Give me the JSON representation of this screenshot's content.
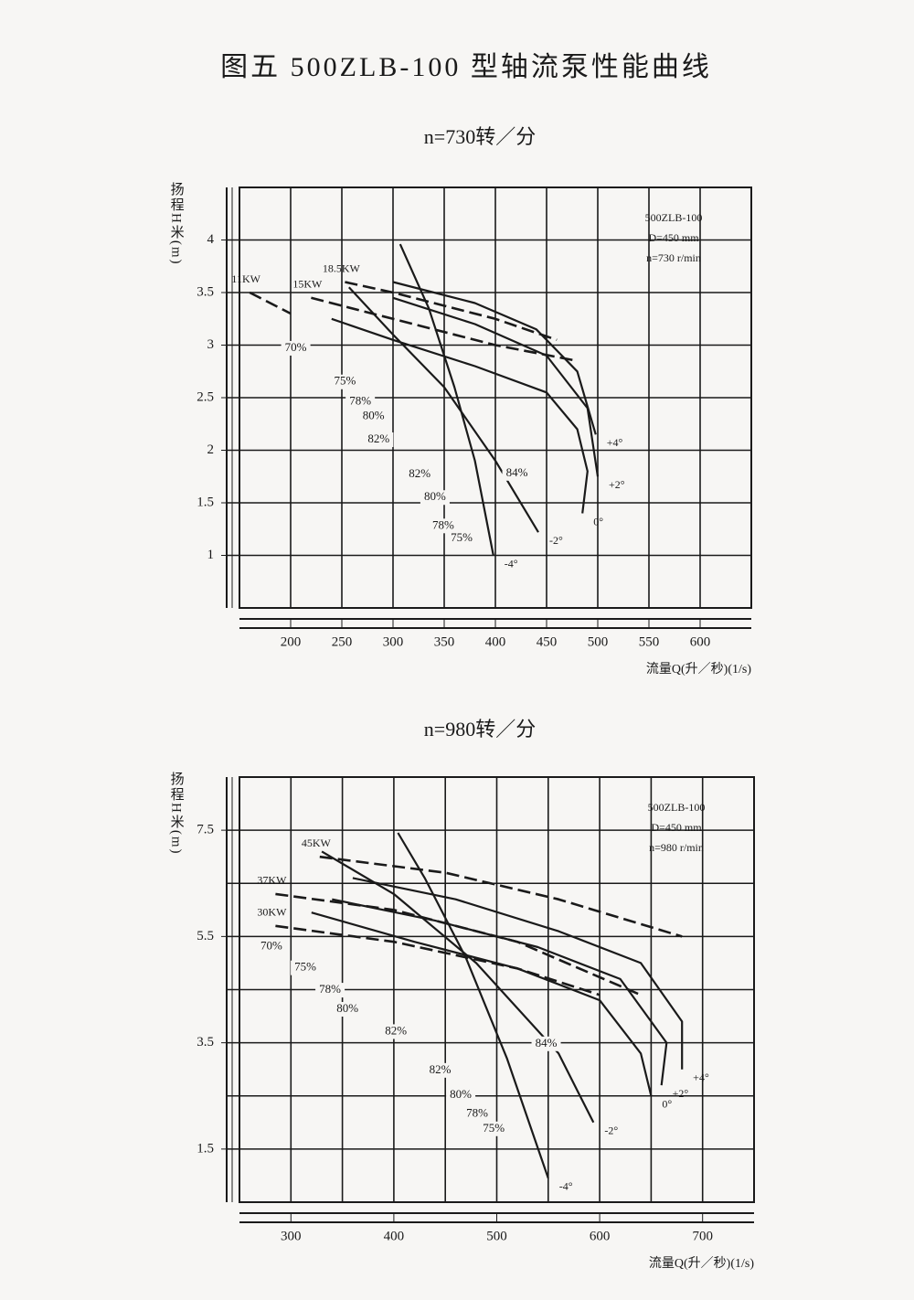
{
  "title": "图五 500ZLB-100 型轴流泵性能曲线",
  "chart_data": [
    {
      "type": "line",
      "title": "n=730转／分",
      "xlabel": "流量Q(升／秒)(1/s)",
      "ylabel": "扬程H米(m)",
      "info": [
        "500ZLB-100",
        "D=450 mm",
        "n=730 r/min"
      ],
      "xlim": [
        150,
        650
      ],
      "ylim": [
        0.5,
        4.5
      ],
      "xticks": [
        200,
        250,
        300,
        350,
        400,
        450,
        500,
        550,
        600
      ],
      "yticks": [
        1,
        1.5,
        2,
        2.5,
        3,
        3.5,
        4
      ],
      "xgrid": [
        200,
        250,
        300,
        350,
        400,
        450,
        500,
        550,
        600
      ],
      "ygrid": [
        1,
        1.5,
        2,
        2.5,
        3,
        3.5,
        4
      ],
      "color": "#1a1a1a",
      "series": [
        {
          "name": "-4°",
          "x": [
            307,
            335,
            360,
            380,
            398
          ],
          "values": [
            3.96,
            3.35,
            2.6,
            1.9,
            1.0
          ]
        },
        {
          "name": "-2°",
          "x": [
            257,
            300,
            350,
            400,
            442
          ],
          "values": [
            3.55,
            3.1,
            2.6,
            1.9,
            1.22
          ]
        },
        {
          "name": "0°",
          "x": [
            240,
            300,
            380,
            450,
            480,
            490,
            485
          ],
          "values": [
            3.25,
            3.05,
            2.8,
            2.55,
            2.2,
            1.8,
            1.4
          ]
        },
        {
          "name": "+2°",
          "x": [
            300,
            380,
            450,
            490,
            500
          ],
          "values": [
            3.45,
            3.2,
            2.9,
            2.4,
            1.75
          ]
        },
        {
          "name": "+4°",
          "x": [
            300,
            380,
            440,
            480,
            498
          ],
          "values": [
            3.6,
            3.4,
            3.15,
            2.75,
            2.15
          ]
        },
        {
          "name": "11KW",
          "dashed": true,
          "x": [
            160,
            200
          ],
          "values": [
            3.5,
            3.3
          ]
        },
        {
          "name": "15KW",
          "dashed": true,
          "x": [
            220,
            300,
            400,
            480
          ],
          "values": [
            3.45,
            3.25,
            3.0,
            2.85
          ]
        },
        {
          "name": "18.5KW",
          "dashed": true,
          "x": [
            253,
            300,
            400,
            460
          ],
          "values": [
            3.6,
            3.5,
            3.25,
            3.05
          ]
        }
      ],
      "annotations": [
        {
          "text": "70%",
          "x": 205,
          "y": 2.97
        },
        {
          "text": "75%",
          "x": 253,
          "y": 2.65
        },
        {
          "text": "78%",
          "x": 268,
          "y": 2.46
        },
        {
          "text": "80%",
          "x": 281,
          "y": 2.32
        },
        {
          "text": "82%",
          "x": 286,
          "y": 2.1
        },
        {
          "text": "82%",
          "x": 326,
          "y": 1.77
        },
        {
          "text": "84%",
          "x": 421,
          "y": 1.78
        },
        {
          "text": "80%",
          "x": 341,
          "y": 1.55
        },
        {
          "text": "78%",
          "x": 349,
          "y": 1.28
        },
        {
          "text": "75%",
          "x": 367,
          "y": 1.16
        }
      ]
    },
    {
      "type": "line",
      "title": "n=980转／分",
      "xlabel": "流量Q(升／秒)(1/s)",
      "ylabel": "扬程H米(m)",
      "info": [
        "500ZLB-100",
        "D=450 mm",
        "n=980 r/min"
      ],
      "xlim": [
        250,
        750
      ],
      "ylim": [
        0.5,
        8.5
      ],
      "xticks": [
        300,
        400,
        500,
        600,
        700
      ],
      "yticks": [
        1.5,
        3.5,
        5.5,
        7.5
      ],
      "xgrid": [
        300,
        350,
        400,
        450,
        500,
        550,
        600,
        650,
        700
      ],
      "ygrid": [
        1.5,
        2.5,
        3.5,
        4.5,
        5.5,
        6.5,
        7.5
      ],
      "color": "#1a1a1a",
      "series": [
        {
          "name": "-4°",
          "x": [
            404,
            430,
            470,
            510,
            550
          ],
          "values": [
            7.45,
            6.6,
            5.1,
            3.2,
            0.95
          ]
        },
        {
          "name": "-2°",
          "x": [
            330,
            400,
            480,
            560,
            594
          ],
          "values": [
            7.1,
            6.3,
            5.0,
            3.3,
            2.0
          ]
        },
        {
          "name": "0°",
          "x": [
            320,
            420,
            520,
            600,
            640,
            650
          ],
          "values": [
            5.95,
            5.4,
            4.9,
            4.3,
            3.3,
            2.5
          ]
        },
        {
          "name": "+2°",
          "x": [
            340,
            440,
            540,
            620,
            665,
            660
          ],
          "values": [
            6.2,
            5.8,
            5.3,
            4.7,
            3.5,
            2.7
          ]
        },
        {
          "name": "+4°",
          "x": [
            360,
            460,
            560,
            640,
            680,
            680
          ],
          "values": [
            6.6,
            6.2,
            5.6,
            5.0,
            3.9,
            3.0
          ]
        },
        {
          "name": "45KW",
          "dashed": true,
          "x": [
            328,
            450,
            560,
            680
          ],
          "values": [
            7.0,
            6.7,
            6.2,
            5.5
          ]
        },
        {
          "name": "37KW",
          "dashed": true,
          "x": [
            285,
            400,
            520,
            640
          ],
          "values": [
            6.3,
            6.0,
            5.4,
            4.4
          ]
        },
        {
          "name": "30KW",
          "dashed": true,
          "x": [
            285,
            400,
            520,
            600
          ],
          "values": [
            5.7,
            5.4,
            4.9,
            4.4
          ]
        }
      ],
      "annotations": [
        {
          "text": "70%",
          "x": 281,
          "y": 5.31
        },
        {
          "text": "75%",
          "x": 314,
          "y": 4.91
        },
        {
          "text": "78%",
          "x": 338,
          "y": 4.49
        },
        {
          "text": "80%",
          "x": 355,
          "y": 4.13
        },
        {
          "text": "82%",
          "x": 402,
          "y": 3.71
        },
        {
          "text": "84%",
          "x": 548,
          "y": 3.48
        },
        {
          "text": "82%",
          "x": 445,
          "y": 2.98
        },
        {
          "text": "80%",
          "x": 465,
          "y": 2.51
        },
        {
          "text": "78%",
          "x": 481,
          "y": 2.16
        },
        {
          "text": "75%",
          "x": 497,
          "y": 1.88
        }
      ]
    }
  ]
}
